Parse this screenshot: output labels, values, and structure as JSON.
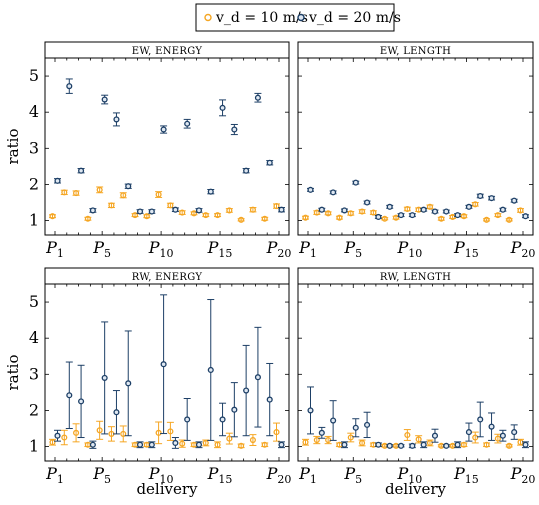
{
  "legend": {
    "placement": "top-center",
    "entries": [
      {
        "label": "v_d = 10 m/s",
        "color": "#f5a623",
        "marker": "open-circle"
      },
      {
        "label": "v_d = 20 m/s",
        "color": "#1d3f66",
        "marker": "open-circle"
      }
    ]
  },
  "colors": {
    "orange": "#f5a623",
    "blue": "#1d3f66"
  },
  "chart_data": [
    {
      "type": "scatter",
      "title": "EW, ENERGY",
      "ylabel": "ratio",
      "xlabel": "",
      "ylim": [
        0.6,
        5.5
      ],
      "yticks": [
        1,
        2,
        3,
        4,
        5
      ],
      "xtick_labels": [
        "P1",
        "P5",
        "P10",
        "P15",
        "P20"
      ],
      "xtick_positions": [
        1,
        5,
        10,
        15,
        20
      ],
      "series": [
        {
          "name": "v_d = 10 m/s",
          "x": [
            1,
            2,
            3,
            4,
            5,
            6,
            7,
            8,
            9,
            10,
            11,
            12,
            13,
            14,
            15,
            16,
            17,
            18,
            19,
            20
          ],
          "y": [
            1.12,
            1.78,
            1.76,
            1.05,
            1.85,
            1.42,
            1.7,
            1.15,
            1.12,
            1.72,
            1.42,
            1.22,
            1.2,
            1.15,
            1.15,
            1.28,
            1.02,
            1.3,
            1.05,
            1.4
          ],
          "err": [
            0.04,
            0.06,
            0.06,
            0.04,
            0.08,
            0.06,
            0.07,
            0.04,
            0.04,
            0.08,
            0.06,
            0.05,
            0.04,
            0.04,
            0.04,
            0.05,
            0.03,
            0.06,
            0.04,
            0.06
          ]
        },
        {
          "name": "v_d = 20 m/s",
          "x": [
            1,
            2,
            3,
            4,
            5,
            6,
            7,
            8,
            9,
            10,
            11,
            12,
            13,
            14,
            15,
            16,
            17,
            18,
            19,
            20
          ],
          "y": [
            2.1,
            4.72,
            2.38,
            1.28,
            4.35,
            3.8,
            1.95,
            1.25,
            1.25,
            3.52,
            1.3,
            3.68,
            1.28,
            1.8,
            4.12,
            3.52,
            2.38,
            4.4,
            2.6,
            1.3
          ],
          "err": [
            0.06,
            0.2,
            0.06,
            0.05,
            0.12,
            0.18,
            0.06,
            0.05,
            0.05,
            0.1,
            0.05,
            0.12,
            0.05,
            0.06,
            0.22,
            0.14,
            0.06,
            0.12,
            0.06,
            0.06
          ]
        }
      ]
    },
    {
      "type": "scatter",
      "title": "EW, LENGTH",
      "ylabel": "",
      "xlabel": "",
      "ylim": [
        0.6,
        5.5
      ],
      "yticks": [
        1,
        2,
        3,
        4,
        5
      ],
      "xtick_labels": [
        "P1",
        "P5",
        "P10",
        "P15",
        "P20"
      ],
      "xtick_positions": [
        1,
        5,
        10,
        15,
        20
      ],
      "series": [
        {
          "name": "v_d = 10 m/s",
          "x": [
            1,
            2,
            3,
            4,
            5,
            6,
            7,
            8,
            9,
            10,
            11,
            12,
            13,
            14,
            15,
            16,
            17,
            18,
            19,
            20
          ],
          "y": [
            1.08,
            1.22,
            1.2,
            1.08,
            1.2,
            1.25,
            1.22,
            1.05,
            1.08,
            1.32,
            1.3,
            1.38,
            1.05,
            1.1,
            1.12,
            1.45,
            1.02,
            1.15,
            1.02,
            1.28
          ],
          "err": [
            0.04,
            0.05,
            0.04,
            0.04,
            0.05,
            0.05,
            0.05,
            0.03,
            0.04,
            0.05,
            0.05,
            0.05,
            0.04,
            0.04,
            0.04,
            0.05,
            0.03,
            0.04,
            0.03,
            0.05
          ]
        },
        {
          "name": "v_d = 20 m/s",
          "x": [
            1,
            2,
            3,
            4,
            5,
            6,
            7,
            8,
            9,
            10,
            11,
            12,
            13,
            14,
            15,
            16,
            17,
            18,
            19,
            20
          ],
          "y": [
            1.85,
            1.3,
            1.78,
            1.28,
            2.05,
            1.5,
            1.1,
            1.38,
            1.15,
            1.15,
            1.3,
            1.25,
            1.25,
            1.15,
            1.38,
            1.68,
            1.62,
            1.3,
            1.55,
            1.12
          ],
          "err": [
            0.04,
            0.04,
            0.04,
            0.04,
            0.04,
            0.04,
            0.04,
            0.04,
            0.04,
            0.04,
            0.04,
            0.04,
            0.04,
            0.04,
            0.04,
            0.05,
            0.05,
            0.04,
            0.04,
            0.04
          ]
        }
      ]
    },
    {
      "type": "scatter",
      "title": "RW, ENERGY",
      "ylabel": "ratio",
      "xlabel": "delivery",
      "ylim": [
        0.6,
        5.5
      ],
      "yticks": [
        1,
        2,
        3,
        4,
        5
      ],
      "xtick_labels": [
        "P1",
        "P5",
        "P10",
        "P15",
        "P20"
      ],
      "xtick_positions": [
        1,
        5,
        10,
        15,
        20
      ],
      "series": [
        {
          "name": "v_d = 10 m/s",
          "x": [
            1,
            2,
            3,
            4,
            5,
            6,
            7,
            8,
            9,
            10,
            11,
            12,
            13,
            14,
            15,
            16,
            17,
            18,
            19,
            20
          ],
          "y": [
            1.12,
            1.25,
            1.38,
            1.05,
            1.45,
            1.35,
            1.35,
            1.05,
            1.05,
            1.38,
            1.42,
            1.08,
            1.05,
            1.1,
            1.05,
            1.22,
            1.02,
            1.18,
            1.05,
            1.4
          ],
          "err": [
            0.08,
            0.2,
            0.25,
            0.05,
            0.25,
            0.2,
            0.22,
            0.05,
            0.05,
            0.3,
            0.25,
            0.1,
            0.05,
            0.08,
            0.08,
            0.15,
            0.05,
            0.15,
            0.05,
            0.25
          ]
        },
        {
          "name": "v_d = 20 m/s",
          "x": [
            1,
            2,
            3,
            4,
            5,
            6,
            7,
            8,
            9,
            10,
            11,
            12,
            13,
            14,
            15,
            16,
            17,
            18,
            19,
            20
          ],
          "y": [
            1.3,
            2.42,
            2.25,
            1.05,
            2.9,
            1.95,
            2.75,
            1.05,
            1.05,
            3.28,
            1.1,
            1.75,
            1.05,
            3.12,
            1.75,
            2.02,
            2.55,
            2.92,
            2.3,
            1.05
          ],
          "err": [
            0.15,
            0.92,
            1.0,
            0.1,
            1.55,
            0.6,
            1.45,
            0.08,
            0.08,
            1.92,
            0.15,
            0.58,
            0.08,
            1.95,
            0.45,
            0.75,
            1.25,
            1.38,
            1.0,
            0.08
          ]
        }
      ]
    },
    {
      "type": "scatter",
      "title": "RW, LENGTH",
      "ylabel": "",
      "xlabel": "delivery",
      "ylim": [
        0.6,
        5.5
      ],
      "yticks": [
        1,
        2,
        3,
        4,
        5
      ],
      "xtick_labels": [
        "P1",
        "P5",
        "P10",
        "P15",
        "P20"
      ],
      "xtick_positions": [
        1,
        5,
        10,
        15,
        20
      ],
      "series": [
        {
          "name": "v_d = 10 m/s",
          "x": [
            1,
            2,
            3,
            4,
            5,
            6,
            7,
            8,
            9,
            10,
            11,
            12,
            13,
            14,
            15,
            16,
            17,
            18,
            19,
            20
          ],
          "y": [
            1.12,
            1.18,
            1.18,
            1.05,
            1.25,
            1.1,
            1.05,
            1.02,
            1.02,
            1.32,
            1.2,
            1.1,
            1.02,
            1.02,
            1.05,
            1.25,
            1.05,
            1.22,
            1.02,
            1.12
          ],
          "err": [
            0.08,
            0.1,
            0.1,
            0.05,
            0.12,
            0.08,
            0.05,
            0.03,
            0.03,
            0.15,
            0.1,
            0.08,
            0.03,
            0.03,
            0.05,
            0.15,
            0.05,
            0.12,
            0.03,
            0.08
          ]
        },
        {
          "name": "v_d = 20 m/s",
          "x": [
            1,
            2,
            3,
            4,
            5,
            6,
            7,
            8,
            9,
            10,
            11,
            12,
            13,
            14,
            15,
            16,
            17,
            18,
            19,
            20
          ],
          "y": [
            2.0,
            1.38,
            1.72,
            1.05,
            1.52,
            1.6,
            1.05,
            1.02,
            1.02,
            1.02,
            1.05,
            1.3,
            1.02,
            1.05,
            1.4,
            1.75,
            1.55,
            1.3,
            1.4,
            1.05
          ],
          "err": [
            0.65,
            0.15,
            0.55,
            0.08,
            0.25,
            0.35,
            0.05,
            0.03,
            0.03,
            0.05,
            0.08,
            0.18,
            0.03,
            0.08,
            0.25,
            0.48,
            0.38,
            0.15,
            0.2,
            0.08
          ]
        }
      ]
    }
  ]
}
